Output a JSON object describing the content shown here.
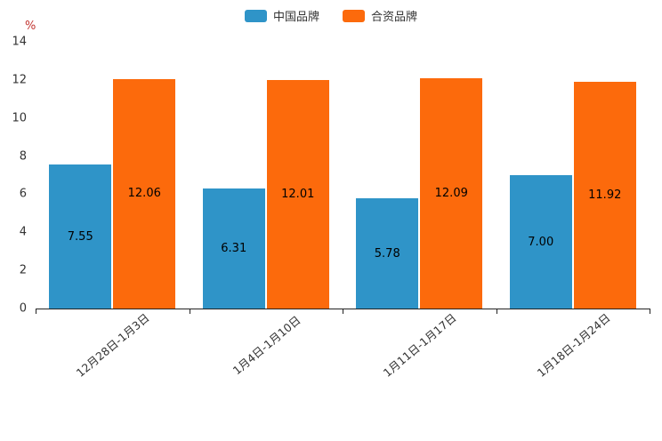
{
  "unit": "%",
  "legend": {
    "items": [
      {
        "label": "中国品牌",
        "color": "#2f94c8"
      },
      {
        "label": "合资品牌",
        "color": "#fc6a0c"
      }
    ]
  },
  "chart_data": {
    "type": "bar",
    "title": "",
    "categories": [
      "12月28日-1月3日",
      "1月4日-1月10日",
      "1月11日-1月17日",
      "1月18日-1月24日"
    ],
    "series": [
      {
        "name": "中国品牌",
        "color": "#2f94c8",
        "values": [
          7.55,
          6.31,
          5.78,
          7.0
        ]
      },
      {
        "name": "合资品牌",
        "color": "#fc6a0c",
        "values": [
          12.06,
          12.01,
          12.09,
          11.92
        ]
      }
    ],
    "xlabel": "",
    "ylabel": "%",
    "ylim": [
      0,
      14
    ],
    "ytick_step": 2,
    "grid": false,
    "legend_position": "top",
    "bar_label_position": "inside-center",
    "bar_label_decimals": 2
  }
}
